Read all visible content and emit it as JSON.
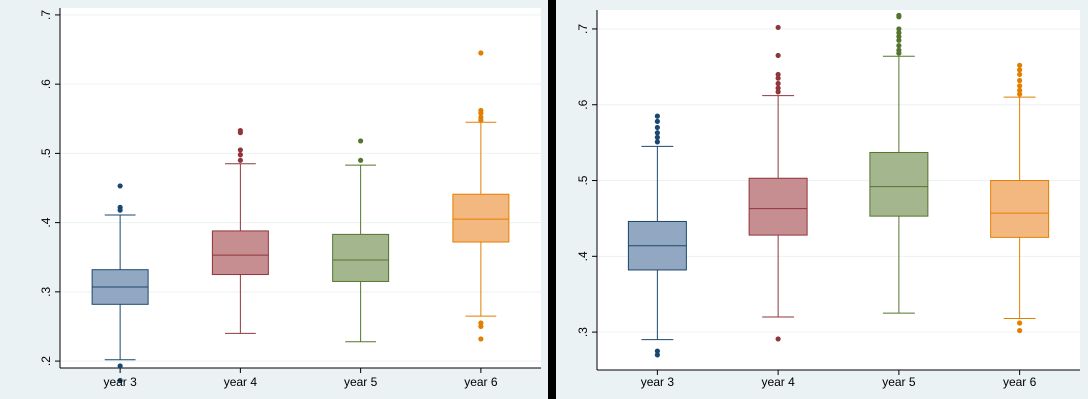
{
  "chart_data": [
    {
      "type": "boxplot",
      "categories": [
        "year 3",
        "year 4",
        "year 5",
        "year 6"
      ],
      "ylim": [
        0.19,
        0.71
      ],
      "yticks": [
        ".2",
        ".3",
        ".4",
        ".5",
        ".6",
        ".7"
      ],
      "ytick_values": [
        0.2,
        0.3,
        0.4,
        0.5,
        0.6,
        0.7
      ],
      "grid": true,
      "boxes": [
        {
          "category": "year 3",
          "q1": 0.282,
          "median": 0.307,
          "q3": 0.332,
          "whisker_low": 0.202,
          "whisker_high": 0.411,
          "outliers": [
            0.453,
            0.422,
            0.418,
            0.193,
            0.172
          ]
        },
        {
          "category": "year 4",
          "q1": 0.325,
          "median": 0.353,
          "q3": 0.388,
          "whisker_low": 0.24,
          "whisker_high": 0.485,
          "outliers": [
            0.533,
            0.53,
            0.505,
            0.498,
            0.49
          ]
        },
        {
          "category": "year 5",
          "q1": 0.315,
          "median": 0.346,
          "q3": 0.383,
          "whisker_low": 0.228,
          "whisker_high": 0.483,
          "outliers": [
            0.518,
            0.49
          ]
        },
        {
          "category": "year 6",
          "q1": 0.372,
          "median": 0.405,
          "q3": 0.441,
          "whisker_low": 0.265,
          "whisker_high": 0.545,
          "outliers": [
            0.645,
            0.562,
            0.558,
            0.552,
            0.548,
            0.255,
            0.25,
            0.232
          ]
        }
      ]
    },
    {
      "type": "boxplot",
      "categories": [
        "year 3",
        "year 4",
        "year 5",
        "year 6"
      ],
      "ylim": [
        0.25,
        0.725
      ],
      "yticks": [
        ".3",
        ".4",
        ".5",
        ".6",
        ".7"
      ],
      "ytick_values": [
        0.3,
        0.4,
        0.5,
        0.6,
        0.7
      ],
      "grid": true,
      "boxes": [
        {
          "category": "year 3",
          "q1": 0.382,
          "median": 0.414,
          "q3": 0.446,
          "whisker_low": 0.29,
          "whisker_high": 0.545,
          "outliers": [
            0.585,
            0.578,
            0.57,
            0.563,
            0.557,
            0.551,
            0.275,
            0.27
          ]
        },
        {
          "category": "year 4",
          "q1": 0.428,
          "median": 0.463,
          "q3": 0.503,
          "whisker_low": 0.32,
          "whisker_high": 0.612,
          "outliers": [
            0.702,
            0.665,
            0.64,
            0.635,
            0.628,
            0.622,
            0.617,
            0.291
          ]
        },
        {
          "category": "year 5",
          "q1": 0.453,
          "median": 0.492,
          "q3": 0.537,
          "whisker_low": 0.325,
          "whisker_high": 0.664,
          "outliers": [
            0.718,
            0.716,
            0.7,
            0.695,
            0.69,
            0.685,
            0.678,
            0.672,
            0.668
          ]
        },
        {
          "category": "year 6",
          "q1": 0.425,
          "median": 0.457,
          "q3": 0.5,
          "whisker_low": 0.318,
          "whisker_high": 0.61,
          "outliers": [
            0.652,
            0.646,
            0.64,
            0.632,
            0.625,
            0.619,
            0.614,
            0.312,
            0.302
          ]
        }
      ]
    }
  ],
  "colors": {
    "series_fill": [
      "#92a8c2",
      "#c78e91",
      "#a3b68e",
      "#f3b87f"
    ],
    "series_line": [
      "#1a476f",
      "#90353b",
      "#55752f",
      "#e37e00"
    ],
    "plot_bg": "#ffffff",
    "outer_bg": "#eaf2f3",
    "grid": "#eaf2f3"
  }
}
